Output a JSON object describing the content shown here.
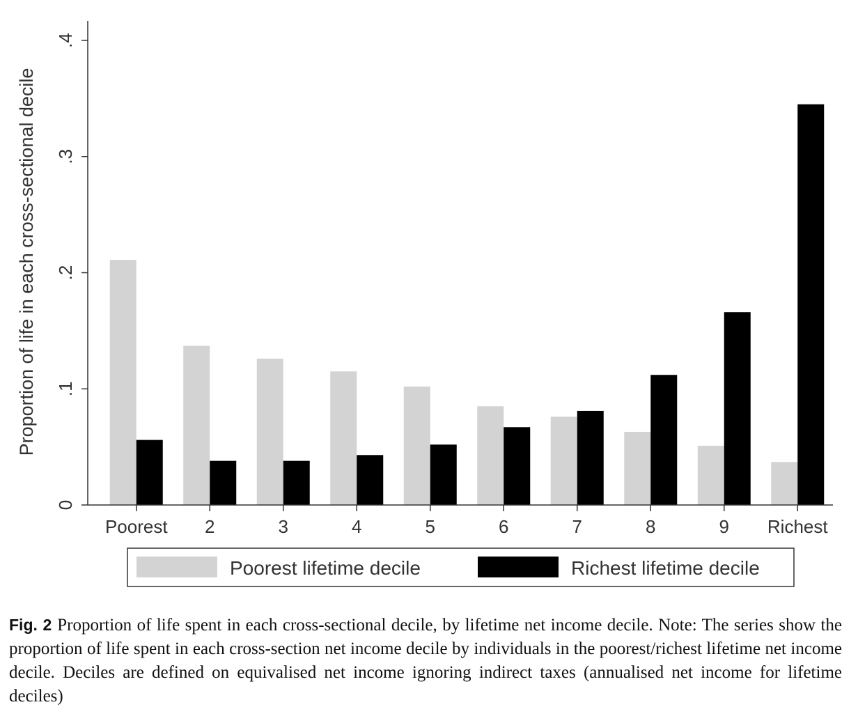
{
  "chart_data": {
    "type": "bar",
    "categories": [
      "Poorest",
      "2",
      "3",
      "4",
      "5",
      "6",
      "7",
      "8",
      "9",
      "Richest"
    ],
    "series": [
      {
        "name": "Poorest lifetime decile",
        "color": "#d3d3d3",
        "values": [
          0.211,
          0.137,
          0.126,
          0.115,
          0.102,
          0.085,
          0.076,
          0.063,
          0.051,
          0.037
        ]
      },
      {
        "name": "Richest lifetime decile",
        "color": "#000000",
        "values": [
          0.056,
          0.038,
          0.038,
          0.043,
          0.052,
          0.067,
          0.081,
          0.112,
          0.166,
          0.345
        ]
      }
    ],
    "ylabel": "Proportion of life in each cross-sectional decile",
    "xlabel": "",
    "ylim": [
      0,
      0.42
    ],
    "yticks": [
      0,
      0.1,
      0.2,
      0.3,
      0.4
    ],
    "ytick_labels": [
      "0",
      ".1",
      ".2",
      ".3",
      ".4"
    ],
    "grid": false,
    "legend_position": "bottom"
  },
  "caption": {
    "label": "Fig. 2",
    "text": "Proportion of life spent in each cross-sectional decile, by lifetime net income decile. Note: The series show the proportion of life spent in each cross-section net income decile by individuals in the poorest/richest lifetime net income decile. Deciles are defined on equivalised net income ignoring indirect taxes (annualised net income for lifetime deciles)"
  }
}
